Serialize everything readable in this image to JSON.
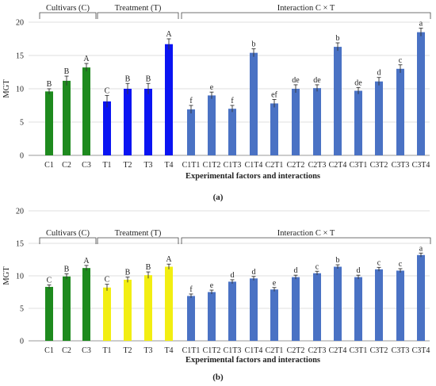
{
  "colors": {
    "cultivar_a": "#1e8a1e",
    "treatment_a": "#0a14f2",
    "cultivar_b": "#1e8a1e",
    "treatment_b": "#f2ee12",
    "interaction": "#4a72c4",
    "grid": "#d4d4d4",
    "error_bar": "#333333"
  },
  "chart_data": [
    {
      "type": "bar",
      "caption": "(a)",
      "ylabel": "MGT",
      "xlabel": "Experimental factors and interactions",
      "ylim": [
        0,
        20
      ],
      "yticks": [
        0,
        5,
        10,
        15,
        20
      ],
      "grid": true,
      "groups": [
        {
          "label": "Cultivars (C)",
          "categories": [
            "C1",
            "C2",
            "C3"
          ],
          "values": [
            9.6,
            11.2,
            13.2
          ],
          "errors": [
            0.4,
            0.7,
            0.6
          ],
          "letters": [
            "B",
            "B",
            "A"
          ],
          "color_key": "cultivar_a"
        },
        {
          "label": "Treatment (T)",
          "categories": [
            "T1",
            "T2",
            "T3",
            "T4"
          ],
          "values": [
            8.1,
            10.0,
            10.0,
            16.7
          ],
          "errors": [
            0.9,
            0.8,
            0.8,
            0.8
          ],
          "letters": [
            "C",
            "B",
            "B",
            "A"
          ],
          "color_key": "treatment_a"
        },
        {
          "label": "Interaction C × T",
          "categories": [
            "C1T1",
            "C1T2",
            "C1T3",
            "C1T4",
            "C2T1",
            "C2T2",
            "C2T3",
            "C2T4",
            "C3T1",
            "C3T2",
            "C3T3",
            "C3T4"
          ],
          "values": [
            6.9,
            9.0,
            7.0,
            15.4,
            7.8,
            10.0,
            10.1,
            16.3,
            9.7,
            11.1,
            13.0,
            18.5
          ],
          "errors": [
            0.6,
            0.5,
            0.5,
            0.6,
            0.6,
            0.6,
            0.5,
            0.6,
            0.5,
            0.6,
            0.6,
            0.6
          ],
          "letters": [
            "f",
            "e",
            "f",
            "b",
            "ef",
            "de",
            "de",
            "b",
            "de",
            "d",
            "c",
            "a"
          ],
          "color_key": "interaction"
        }
      ]
    },
    {
      "type": "bar",
      "caption": "(b)",
      "ylabel": "MGT",
      "xlabel": "Experimental factors and interactions",
      "ylim": [
        0,
        20
      ],
      "yticks": [
        0,
        5,
        10,
        15,
        20
      ],
      "grid": true,
      "groups": [
        {
          "label": "Cultivars (C)",
          "categories": [
            "C1",
            "C2",
            "C3"
          ],
          "values": [
            8.3,
            9.9,
            11.2
          ],
          "errors": [
            0.3,
            0.4,
            0.4
          ],
          "letters": [
            "C",
            "B",
            "A"
          ],
          "color_key": "cultivar_b"
        },
        {
          "label": "Treatment (T)",
          "categories": [
            "T1",
            "T2",
            "T3",
            "T4"
          ],
          "values": [
            8.2,
            9.4,
            10.1,
            11.4
          ],
          "errors": [
            0.5,
            0.4,
            0.5,
            0.4
          ],
          "letters": [
            "C",
            "B",
            "B",
            "A"
          ],
          "color_key": "treatment_b"
        },
        {
          "label": "Interaction C × T",
          "categories": [
            "C1T1",
            "C1T2",
            "C1T3",
            "C1T4",
            "C2T1",
            "C2T2",
            "C2T3",
            "C2T4",
            "C3T1",
            "C3T2",
            "C3T3",
            "C3T4"
          ],
          "values": [
            6.9,
            7.5,
            9.1,
            9.6,
            7.9,
            9.8,
            10.4,
            11.4,
            9.8,
            11.0,
            10.8,
            13.2
          ],
          "errors": [
            0.3,
            0.3,
            0.3,
            0.3,
            0.3,
            0.3,
            0.3,
            0.3,
            0.3,
            0.3,
            0.3,
            0.3
          ],
          "letters": [
            "f",
            "e",
            "d",
            "d",
            "e",
            "d",
            "c",
            "b",
            "d",
            "c",
            "c",
            "a"
          ],
          "color_key": "interaction"
        }
      ]
    }
  ]
}
